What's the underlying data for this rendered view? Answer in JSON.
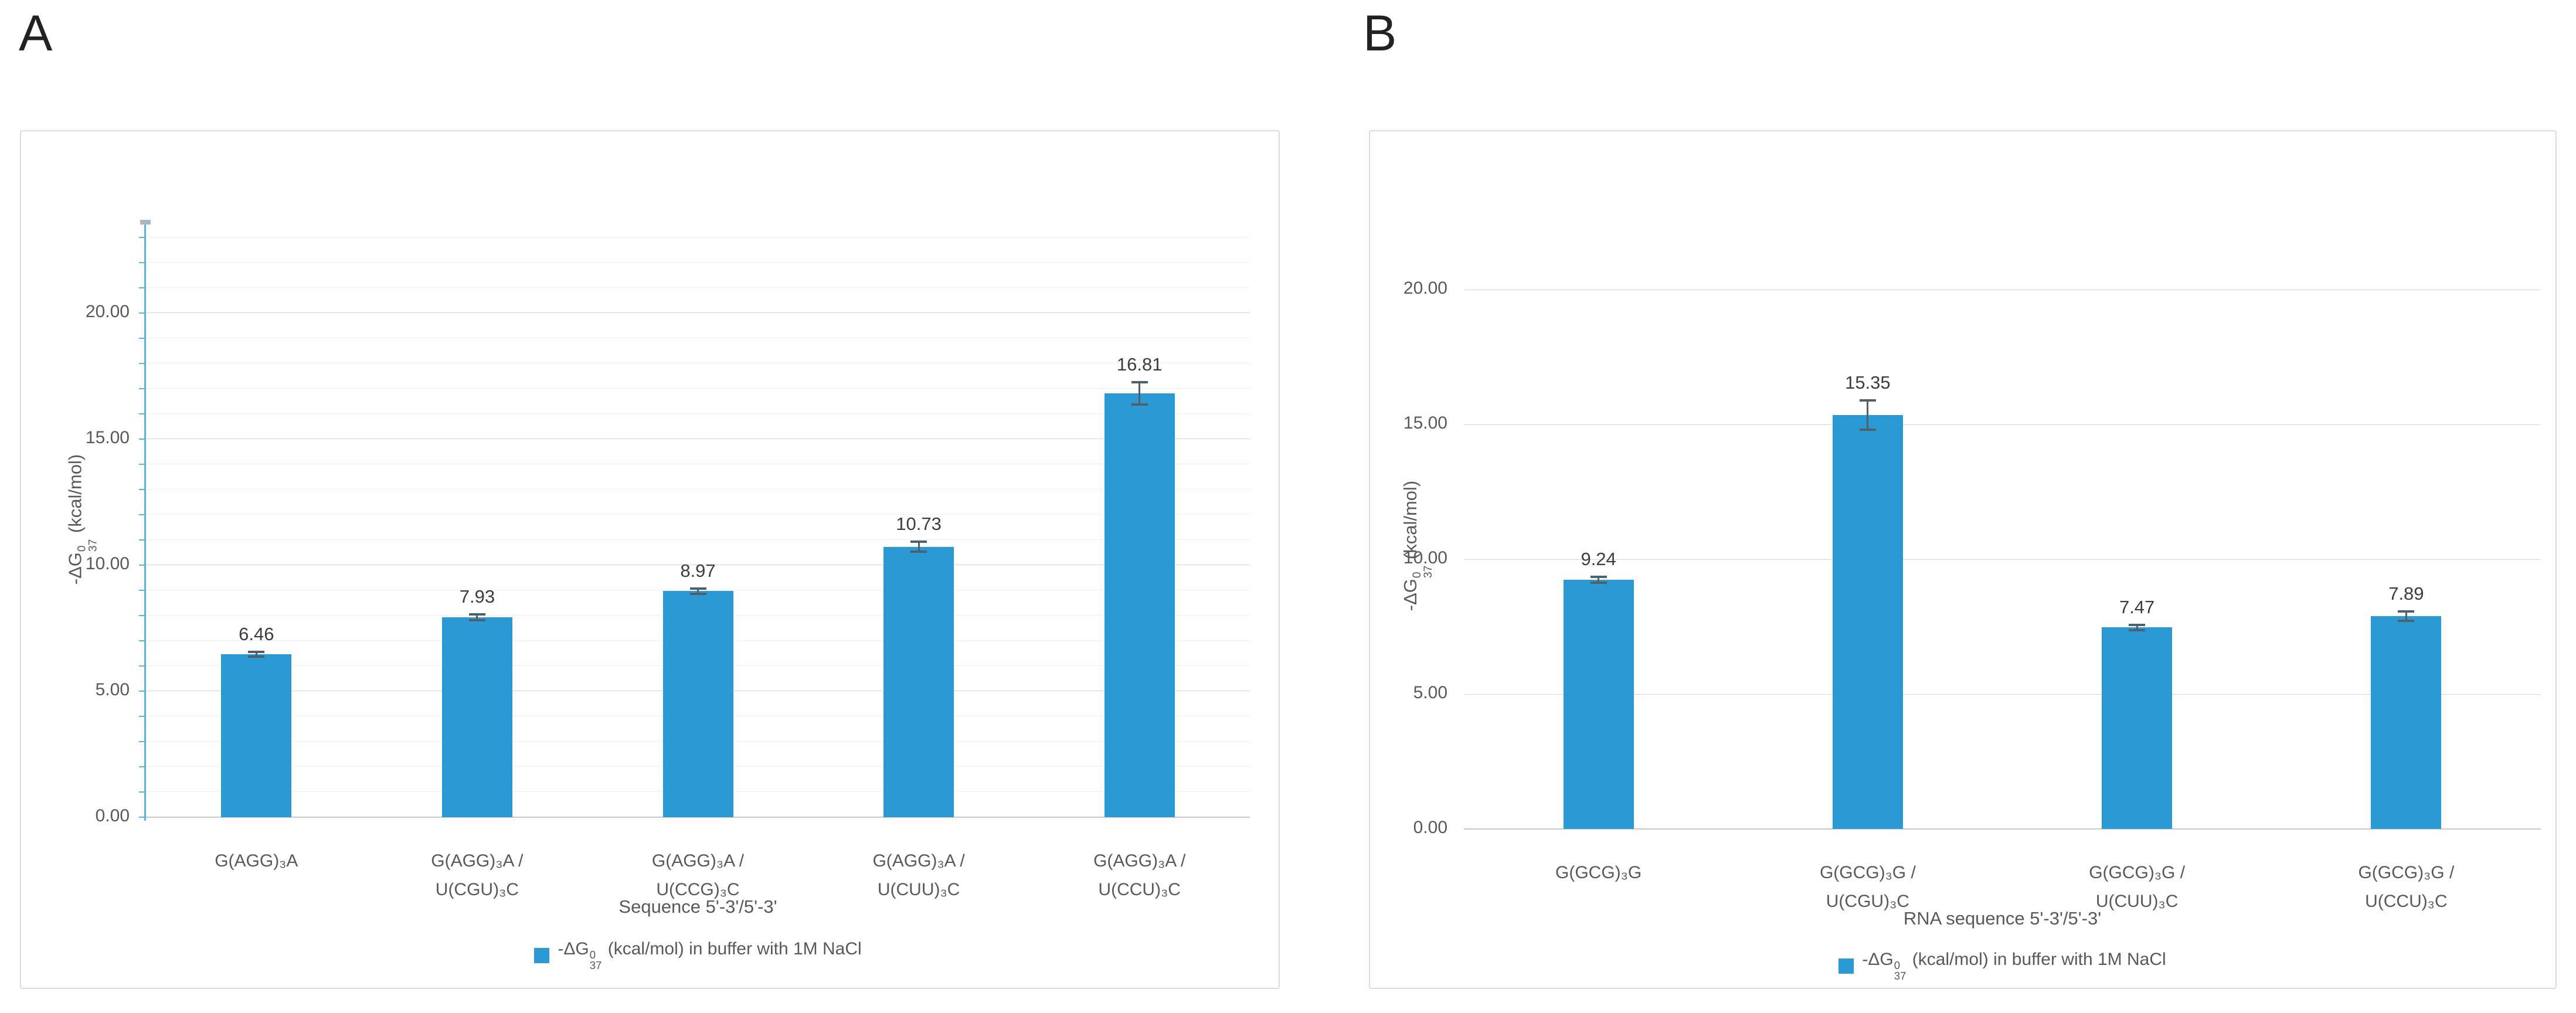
{
  "figure": {
    "panel_a_letter": "A",
    "panel_b_letter": "B"
  },
  "colors": {
    "bar": "#2b9ad4",
    "axis_line": "#5ab4e0",
    "error_bar": "#50606b",
    "major_grid": "#d8d8d8",
    "minor_grid": "#efefef",
    "text": "#595959"
  },
  "chart_data": [
    {
      "id": "panel_a",
      "type": "bar",
      "categories": [
        [
          "G(AGG)₃A"
        ],
        [
          "G(AGG)₃A /",
          "U(CGU)₃C"
        ],
        [
          "G(AGG)₃A /",
          "U(CCG)₃C"
        ],
        [
          "G(AGG)₃A /",
          "U(CUU)₃C"
        ],
        [
          "G(AGG)₃A /",
          "U(CCU)₃C"
        ]
      ],
      "values": [
        6.46,
        7.93,
        8.97,
        10.73,
        16.81
      ],
      "errors": [
        0.1,
        0.12,
        0.1,
        0.2,
        0.45
      ],
      "value_labels": [
        "6.46",
        "7.93",
        "8.97",
        "10.73",
        "16.81"
      ],
      "xlabel": "Sequence 5'-3'/5'-3'",
      "ylabel": {
        "base": "-ΔG",
        "sup": "0",
        "sub": "37",
        "unit": " (kcal/mol)"
      },
      "legend": {
        "base": "-ΔG",
        "sup": "0",
        "sub": "37",
        "rest": " (kcal/mol) in buffer with 1M NaCl"
      },
      "ylim": [
        0,
        23.6
      ],
      "yticks": [
        {
          "v": 0,
          "label": "0.00"
        },
        {
          "v": 5,
          "label": "5.00"
        },
        {
          "v": 10,
          "label": "10.00"
        },
        {
          "v": 15,
          "label": "15.00"
        },
        {
          "v": 20,
          "label": "20.00"
        }
      ],
      "minor_grid": true,
      "axis_line": true,
      "grid": true,
      "legend_position": "bottom"
    },
    {
      "id": "panel_b",
      "type": "bar",
      "categories": [
        [
          "G(GCG)₃G"
        ],
        [
          "G(GCG)₃G /",
          "U(CGU)₃C"
        ],
        [
          "G(GCG)₃G /",
          "U(CUU)₃C"
        ],
        [
          "G(GCG)₃G /",
          "U(CCU)₃C"
        ]
      ],
      "values": [
        9.24,
        15.35,
        7.47,
        7.89
      ],
      "errors": [
        0.1,
        0.55,
        0.1,
        0.18
      ],
      "value_labels": [
        "9.24",
        "15.35",
        "7.47",
        "7.89"
      ],
      "xlabel": "RNA sequence 5'-3'/5'-3'",
      "ylabel": {
        "base": "-ΔG",
        "sup": "0",
        "sub": "37",
        "unit": " (kcal/mol)"
      },
      "legend": {
        "base": "-ΔG",
        "sup": "0",
        "sub": "37",
        "rest": " (kcal/mol) in buffer with 1M NaCl"
      },
      "ylim": [
        0,
        21
      ],
      "yticks": [
        {
          "v": 0,
          "label": "0.00"
        },
        {
          "v": 5,
          "label": "5.00"
        },
        {
          "v": 10,
          "label": "10.00"
        },
        {
          "v": 15,
          "label": "15.00"
        },
        {
          "v": 20,
          "label": "20.00"
        }
      ],
      "minor_grid": false,
      "axis_line": false,
      "grid": true,
      "legend_position": "bottom"
    }
  ]
}
